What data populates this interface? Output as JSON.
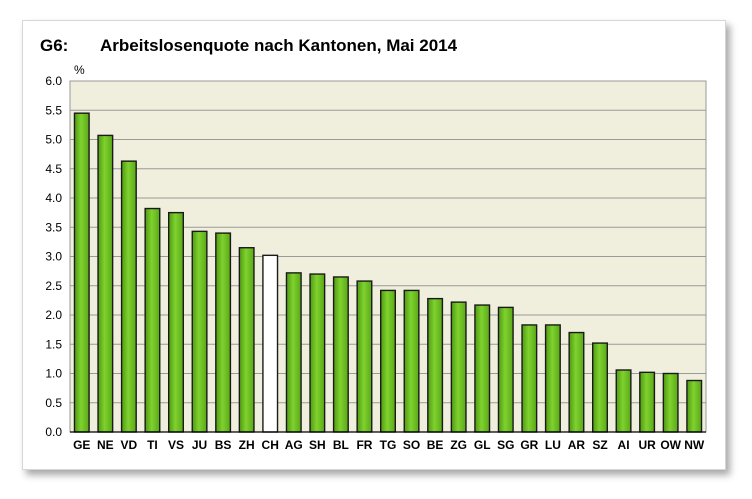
{
  "title": {
    "number": "G6:",
    "text": "Arbeitslosenquote nach Kantonen, Mai 2014"
  },
  "colors": {
    "plot_bg": "#f0eedc",
    "bar": "#7fd22e",
    "bar_highlight": "#ffffff",
    "bar_edge": "#1a1a1a",
    "grid": "#9a9a9a"
  },
  "chart_data": {
    "type": "bar",
    "title": "Arbeitslosenquote nach Kantonen, Mai 2014",
    "ylabel": "%",
    "xlabel": "",
    "ylim": [
      0,
      6
    ],
    "yticks": [
      "0.0",
      "0.5",
      "1.0",
      "1.5",
      "2.0",
      "2.5",
      "3.0",
      "3.5",
      "4.0",
      "4.5",
      "5.0",
      "5.5",
      "6.0"
    ],
    "grid": true,
    "categories": [
      "GE",
      "NE",
      "VD",
      "TI",
      "VS",
      "JU",
      "BS",
      "ZH",
      "CH",
      "AG",
      "SH",
      "BL",
      "FR",
      "TG",
      "SO",
      "BE",
      "ZG",
      "GL",
      "SG",
      "GR",
      "LU",
      "AR",
      "SZ",
      "AI",
      "UR",
      "OW",
      "NW"
    ],
    "values": [
      5.45,
      5.07,
      4.63,
      3.82,
      3.75,
      3.43,
      3.4,
      3.15,
      3.02,
      2.72,
      2.7,
      2.65,
      2.58,
      2.42,
      2.42,
      2.28,
      2.22,
      2.17,
      2.13,
      1.83,
      1.83,
      1.7,
      1.52,
      1.06,
      1.02,
      1.0,
      0.88
    ],
    "highlight": [
      "CH"
    ]
  }
}
